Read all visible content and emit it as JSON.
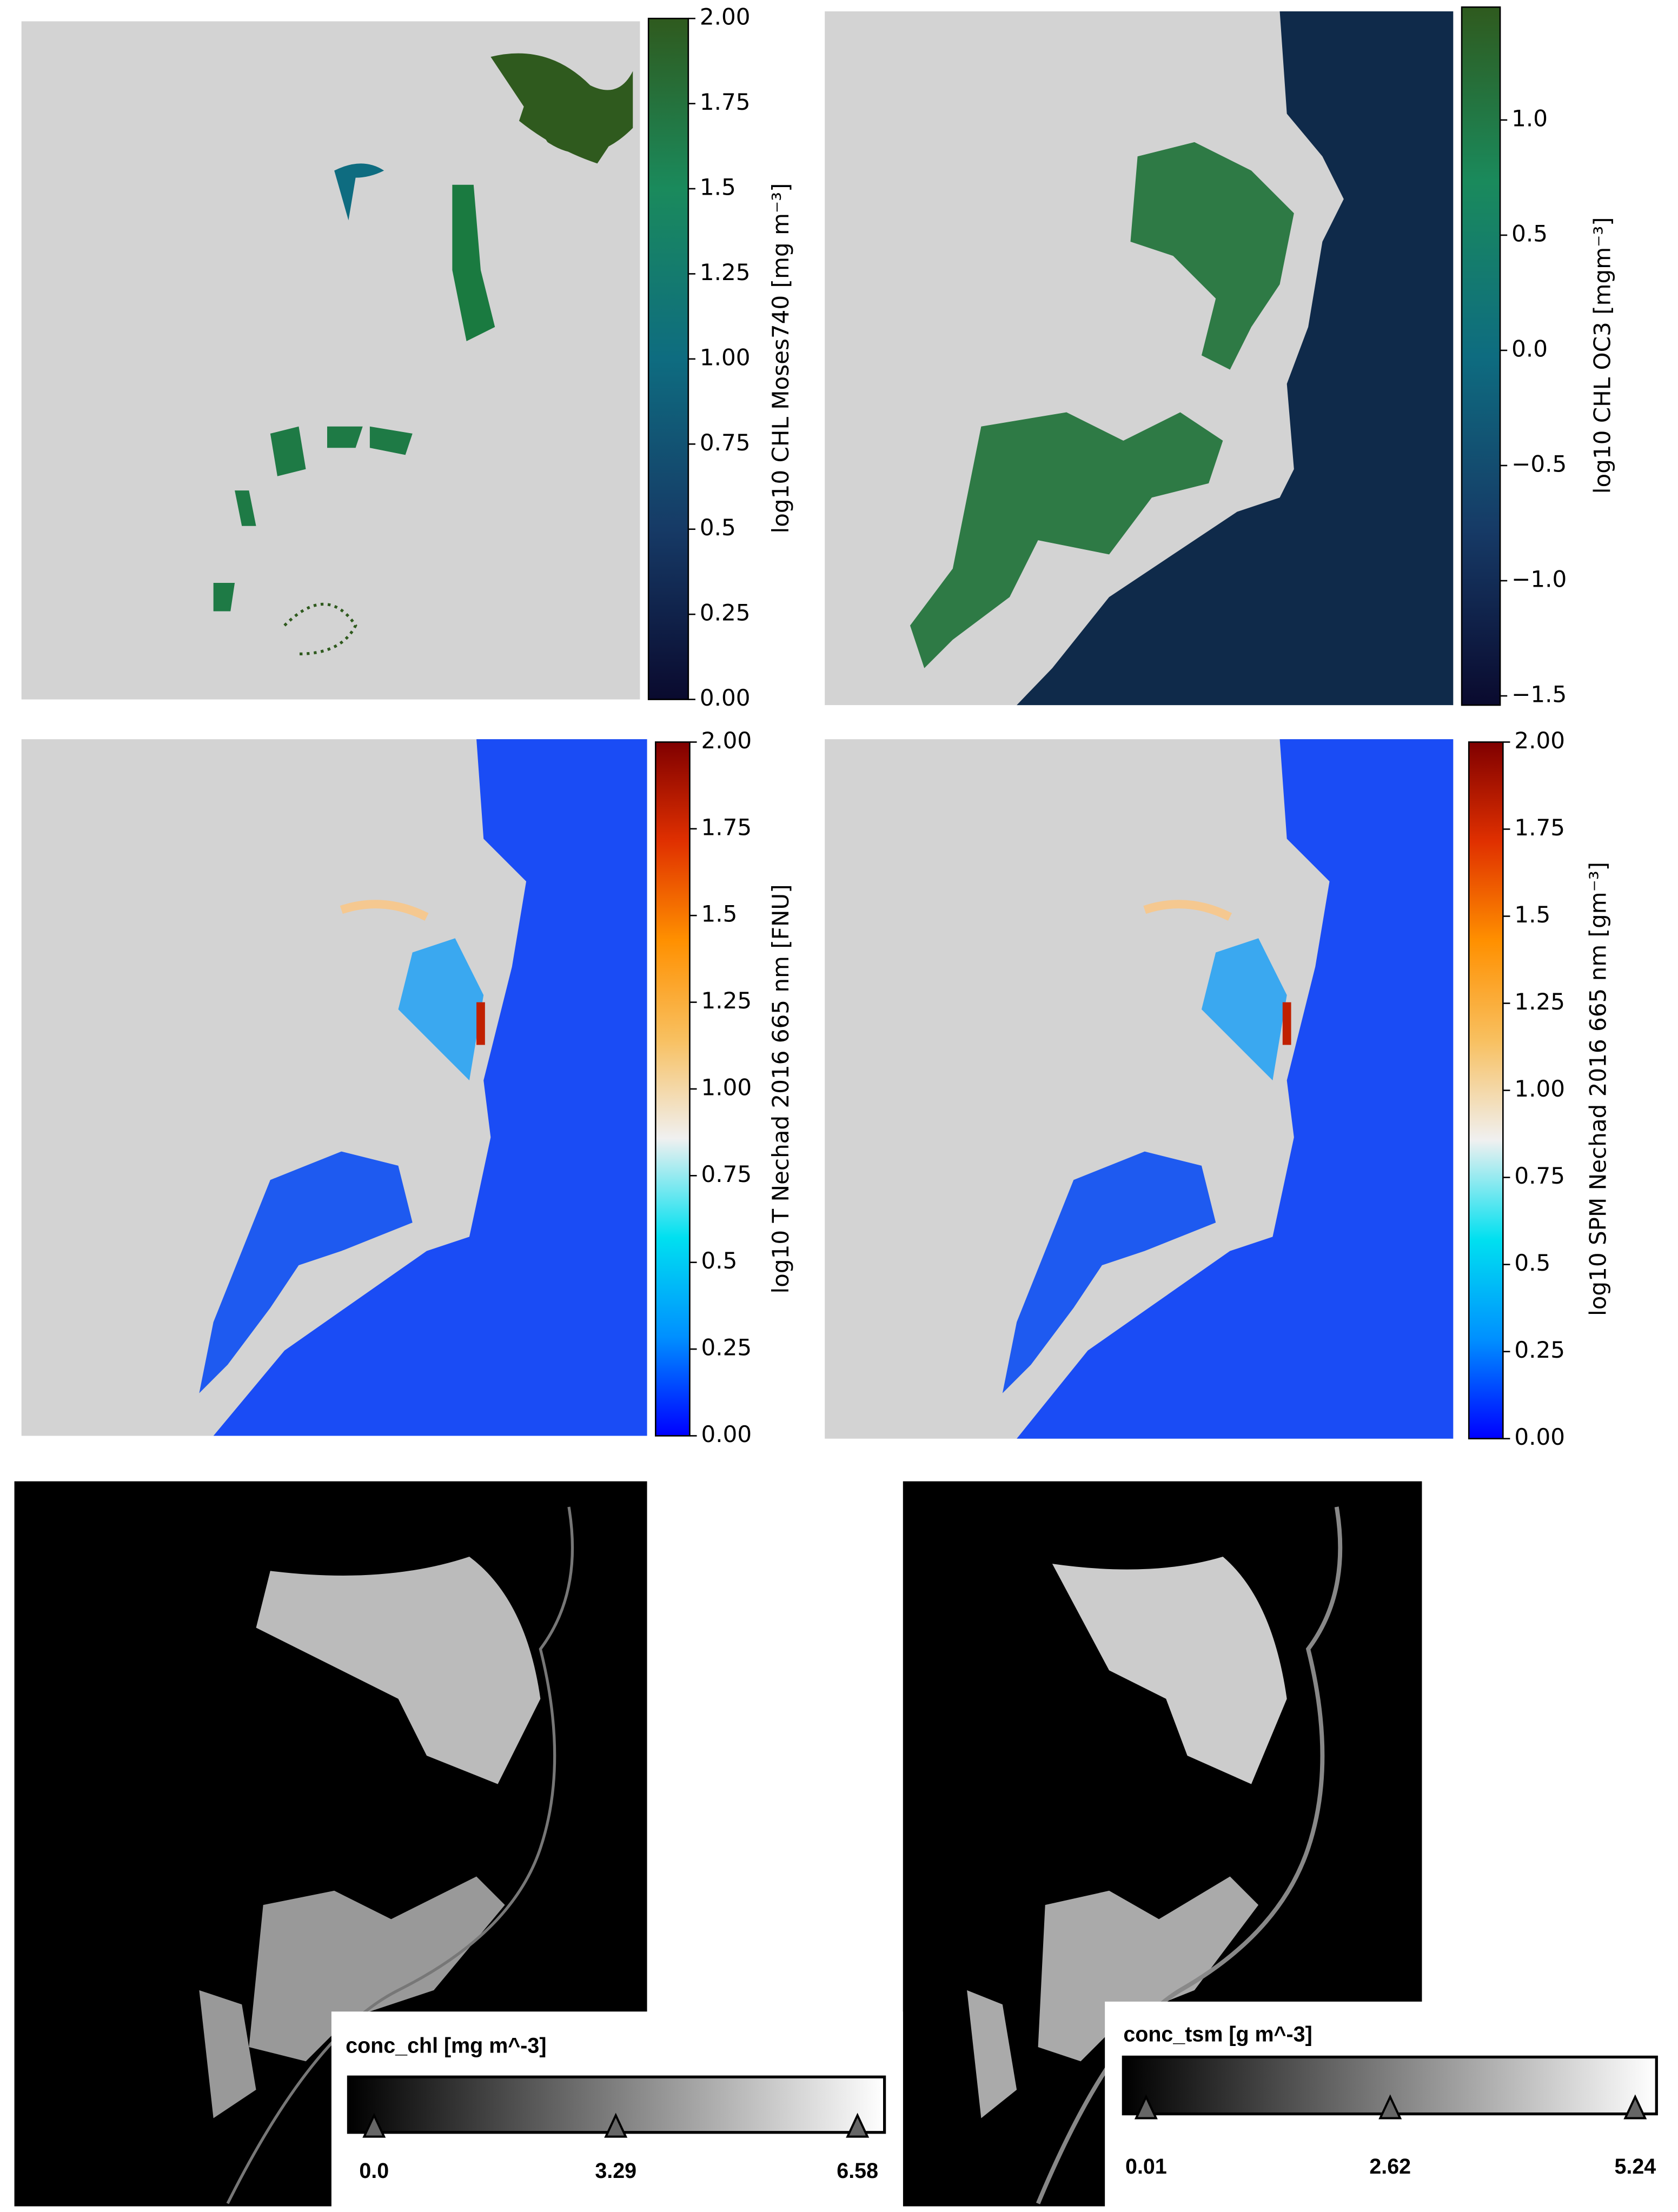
{
  "panels": [
    {
      "colorbar": {
        "label": "log10 CHL Moses740 [mg m⁻³]",
        "lim": [
          0,
          2
        ],
        "ticks": [
          {
            "value": 0,
            "label": "0.00"
          },
          0.25,
          0.5,
          0.75,
          {
            "value": 1,
            "label": "1.00"
          },
          1.25,
          1.5,
          1.75,
          {
            "value": 2,
            "label": "2.00"
          }
        ],
        "colors": [
          "#0a0a2e",
          "#163a66",
          "#0e6c80",
          "#1a8a5c",
          "#2f5a1e"
        ]
      }
    },
    {
      "colorbar": {
        "label": "log10 CHL OC3 [mgm⁻³]",
        "lim": [
          -1.54,
          1.49
        ],
        "ticks": [
          {
            "value": -1.5,
            "label": "−1.5"
          },
          {
            "value": -1,
            "label": "−1.0"
          },
          {
            "value": -0.5,
            "label": "−0.5"
          },
          {
            "value": 0,
            "label": "0.0"
          },
          0.5,
          {
            "value": 1,
            "label": "1.0"
          }
        ],
        "colors": [
          "#0a0a2e",
          "#163a66",
          "#0e6c80",
          "#1a8a5c",
          "#2f5a1e"
        ]
      }
    },
    {
      "colorbar": {
        "label": "log10 T Nechad 2016 665 nm [FNU]",
        "lim": [
          0,
          2
        ],
        "ticks": [
          {
            "value": 0,
            "label": "0.00"
          },
          0.25,
          0.5,
          0.75,
          {
            "value": 1,
            "label": "1.00"
          },
          1.25,
          1.5,
          1.75,
          {
            "value": 2,
            "label": "2.00"
          }
        ],
        "colors": [
          "#0000ff",
          "#0090ff",
          "#00e0f0",
          "#f0f0f0",
          "#f8c060",
          "#ff9000",
          "#e03000",
          "#800000"
        ]
      }
    },
    {
      "colorbar": {
        "label": "log10 SPM Nechad 2016 665 nm [gm⁻³]",
        "lim": [
          0,
          2
        ],
        "ticks": [
          {
            "value": 0,
            "label": "0.00"
          },
          0.25,
          0.5,
          0.75,
          {
            "value": 1,
            "label": "1.00"
          },
          1.25,
          1.5,
          1.75,
          {
            "value": 2,
            "label": "2.00"
          }
        ],
        "colors": [
          "#0000ff",
          "#0090ff",
          "#00e0f0",
          "#f0f0f0",
          "#f8c060",
          "#ff9000",
          "#e03000",
          "#800000"
        ]
      }
    },
    {
      "colorbar": {
        "label": "conc_chl [mg m^-3]",
        "lim": [
          0,
          6.58
        ],
        "ticks": [
          {
            "value": 0,
            "label": "0.0"
          },
          3.29,
          6.58
        ],
        "colors": [
          "#000000",
          "#ffffff"
        ]
      }
    },
    {
      "colorbar": {
        "label": "conc_tsm [g m^-3]",
        "lim": [
          0.01,
          5.24
        ],
        "ticks": [
          0.01,
          2.62,
          5.24
        ],
        "colors": [
          "#000000",
          "#ffffff"
        ]
      }
    }
  ]
}
